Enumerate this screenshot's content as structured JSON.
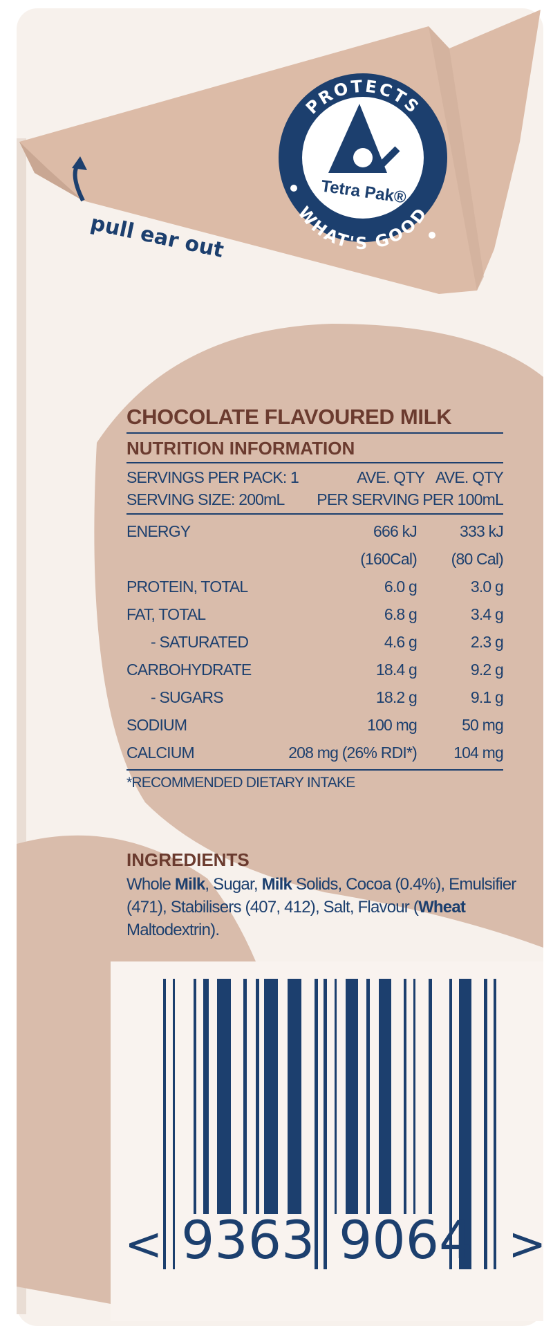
{
  "colors": {
    "brown": "#d9bcab",
    "carton": "#f7f1ec",
    "navy": "#1c3f6e",
    "heading": "#6b3b2f"
  },
  "logo": {
    "top_text": "PROTECTS",
    "bottom_text": "WHAT'S GOOD",
    "brand": "Tetra Pak®"
  },
  "pull_instruction": {
    "icon": "curved-arrow-up-icon",
    "text": "pull ear out"
  },
  "nutrition": {
    "product_title": "CHOCOLATE FLAVOURED MILK",
    "title": "NUTRITION INFORMATION",
    "header": {
      "servings_per_pack": "SERVINGS PER PACK: 1",
      "serving_size": "SERVING SIZE: 200mL",
      "col2_line1": "AVE. QTY",
      "col2_line2": "PER SERVING",
      "col3_line1": "AVE. QTY",
      "col3_line2": "PER 100mL"
    },
    "rows": [
      {
        "name": "ENERGY",
        "per_serving": "666 kJ",
        "per_100ml": "333 kJ"
      },
      {
        "name": "",
        "per_serving": "(160Cal)",
        "per_100ml": "(80 Cal)"
      },
      {
        "name": "PROTEIN, TOTAL",
        "per_serving": "6.0 g",
        "per_100ml": "3.0 g"
      },
      {
        "name": "FAT, TOTAL",
        "per_serving": "6.8 g",
        "per_100ml": "3.4 g"
      },
      {
        "name": "- SATURATED",
        "per_serving": "4.6 g",
        "per_100ml": "2.3 g"
      },
      {
        "name": "CARBOHYDRATE",
        "per_serving": "18.4 g",
        "per_100ml": "9.2 g"
      },
      {
        "name": "- SUGARS",
        "per_serving": "18.2 g",
        "per_100ml": "9.1 g"
      },
      {
        "name": "SODIUM",
        "per_serving": "100 mg",
        "per_100ml": "50 mg"
      },
      {
        "name": "CALCIUM",
        "per_serving": "208 mg (26% RDI*)",
        "per_100ml": "104 mg"
      }
    ],
    "footnote": "*RECOMMENDED DIETARY INTAKE"
  },
  "ingredients": {
    "title": "INGREDIENTS",
    "parts": [
      {
        "text": "Whole ",
        "bold": false
      },
      {
        "text": "Milk",
        "bold": true
      },
      {
        "text": ", Sugar, ",
        "bold": false
      },
      {
        "text": "Milk",
        "bold": true
      },
      {
        "text": " Solids, Cocoa (0.4%), Emulsifier (471), Stabilisers (407, 412), Salt, Flavour (",
        "bold": false
      },
      {
        "text": "Wheat",
        "bold": true
      },
      {
        "text": " Maltodextrin).",
        "bold": false
      }
    ]
  },
  "barcode": {
    "left_digits": "9363",
    "right_digits": "9064",
    "left_mark": "<",
    "right_mark": ">"
  }
}
